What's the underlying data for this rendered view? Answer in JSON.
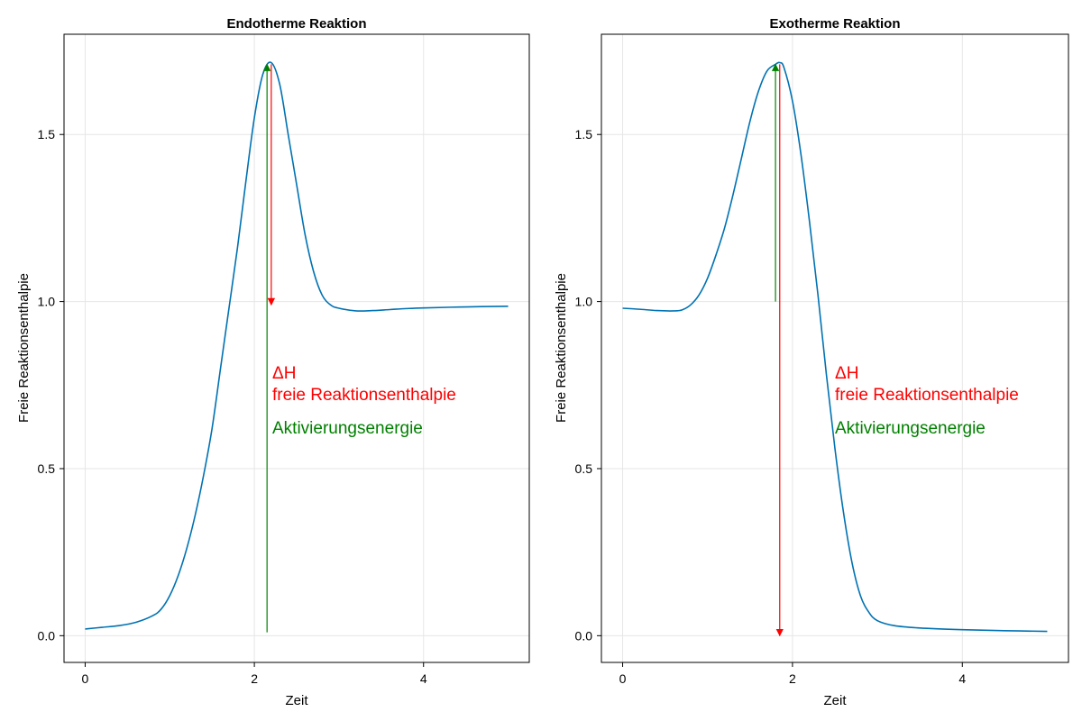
{
  "colors": {
    "curve": "#0072b2",
    "delta_h": "#ff0000",
    "activation": "#008000",
    "grid": "#e6e6e6"
  },
  "chart_data": [
    {
      "type": "line",
      "title": "Endotherme Reaktion",
      "xlabel": "Zeit",
      "ylabel": "Freie Reaktionsenthalpie",
      "xlim": [
        -0.25,
        5.25
      ],
      "ylim": [
        -0.08,
        1.8
      ],
      "xticks": [
        0,
        2,
        4
      ],
      "xtick_labels": [
        "0",
        "2",
        "4"
      ],
      "yticks": [
        0.0,
        0.5,
        1.0,
        1.5
      ],
      "ytick_labels": [
        "0.0",
        "0.5",
        "1.0",
        "1.5"
      ],
      "grid": true,
      "series": [
        {
          "x": [
            0,
            0.2,
            0.4,
            0.6,
            0.8,
            0.9,
            1.0,
            1.1,
            1.2,
            1.3,
            1.4,
            1.5,
            1.6,
            1.7,
            1.8,
            1.9,
            2.0,
            2.1,
            2.2,
            2.3,
            2.4,
            2.5,
            2.6,
            2.7,
            2.8,
            2.9,
            3.0,
            3.2,
            3.4,
            3.6,
            3.8,
            4.0,
            4.5,
            5.0
          ],
          "y": [
            0.02,
            0.025,
            0.03,
            0.04,
            0.06,
            0.08,
            0.12,
            0.18,
            0.26,
            0.36,
            0.48,
            0.62,
            0.8,
            0.98,
            1.16,
            1.36,
            1.55,
            1.68,
            1.715,
            1.65,
            1.5,
            1.35,
            1.2,
            1.09,
            1.02,
            0.99,
            0.98,
            0.972,
            0.973,
            0.976,
            0.979,
            0.981,
            0.984,
            0.986
          ]
        }
      ],
      "annotations": [
        {
          "kind": "arrow",
          "role": "delta_h",
          "x": 2.2,
          "y_from": 1.71,
          "y_to": 0.99
        },
        {
          "kind": "arrow",
          "role": "activation",
          "x": 2.15,
          "y_from": 0.01,
          "y_to": 1.71
        }
      ],
      "labels": {
        "delta_h_symbol": "ΔH",
        "delta_h_text": "freie Reaktionsenthalpie",
        "activation_text": "Aktivierungsenergie"
      }
    },
    {
      "type": "line",
      "title": "Exotherme Reaktion",
      "xlabel": "Zeit",
      "ylabel": "Freie Reaktionsenthalpie",
      "xlim": [
        -0.25,
        5.25
      ],
      "ylim": [
        -0.08,
        1.8
      ],
      "xticks": [
        0,
        2,
        4
      ],
      "xtick_labels": [
        "0",
        "2",
        "4"
      ],
      "yticks": [
        0.0,
        0.5,
        1.0,
        1.5
      ],
      "ytick_labels": [
        "0.0",
        "0.5",
        "1.0",
        "1.5"
      ],
      "grid": true,
      "series": [
        {
          "x": [
            0,
            0.2,
            0.4,
            0.6,
            0.7,
            0.8,
            0.9,
            1.0,
            1.1,
            1.2,
            1.3,
            1.4,
            1.5,
            1.6,
            1.7,
            1.8,
            1.85,
            1.9,
            2.0,
            2.1,
            2.2,
            2.3,
            2.4,
            2.5,
            2.6,
            2.7,
            2.8,
            2.9,
            3.0,
            3.2,
            3.5,
            4.0,
            4.5,
            5.0
          ],
          "y": [
            0.98,
            0.977,
            0.973,
            0.972,
            0.975,
            0.99,
            1.02,
            1.07,
            1.14,
            1.22,
            1.32,
            1.43,
            1.54,
            1.63,
            1.69,
            1.71,
            1.715,
            1.7,
            1.6,
            1.44,
            1.24,
            1.02,
            0.78,
            0.56,
            0.37,
            0.22,
            0.12,
            0.07,
            0.045,
            0.03,
            0.023,
            0.018,
            0.015,
            0.013
          ]
        }
      ],
      "annotations": [
        {
          "kind": "arrow",
          "role": "delta_h",
          "x": 1.85,
          "y_from": 1.71,
          "y_to": 0.0
        },
        {
          "kind": "arrow",
          "role": "activation",
          "x": 1.8,
          "y_from": 1.0,
          "y_to": 1.71
        }
      ],
      "labels": {
        "delta_h_symbol": "ΔH",
        "delta_h_text": "freie Reaktionsenthalpie",
        "activation_text": "Aktivierungsenergie"
      }
    }
  ]
}
